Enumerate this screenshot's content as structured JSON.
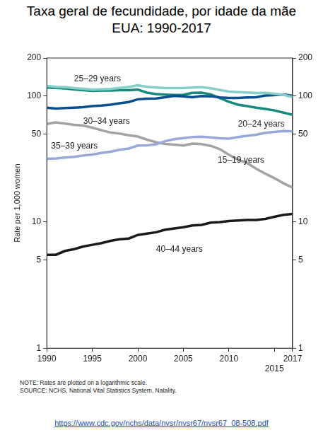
{
  "chart_data": {
    "type": "line",
    "title": "Taxa geral de fecundidade, por idade da mãe",
    "subtitle": "EUA: 1990-2017",
    "y_label": "Rate per 1,000 women",
    "notes": [
      "NOTE: Rates are plotted on a logarithmic scale.",
      "SOURCE: NCHS, National Vital Statistics System, Natality."
    ],
    "source_url": "https://www.cdc.gov/nchs/data/nvsr/nvsr67/nvsr67_08-508.pdf",
    "log": "y",
    "grid": false,
    "x": [
      1990,
      1991,
      1992,
      1993,
      1994,
      1995,
      1996,
      1997,
      1998,
      1999,
      2000,
      2001,
      2002,
      2003,
      2004,
      2005,
      2006,
      2007,
      2008,
      2009,
      2010,
      2011,
      2012,
      2013,
      2014,
      2015,
      2016,
      2017
    ],
    "xlim": [
      1990,
      2017
    ],
    "xticks": [
      1990,
      1995,
      2000,
      2005,
      2010,
      2015,
      2017
    ],
    "ylim": [
      1,
      200
    ],
    "yticks": [
      1,
      5,
      10,
      50,
      100,
      200
    ],
    "y2lim": [
      1,
      200
    ],
    "y2ticks": [
      1,
      5,
      10,
      50,
      100,
      200
    ],
    "series": [
      {
        "name": "25–29 years",
        "color": "#86cfc8",
        "values": [
          120.2,
          118.2,
          117.4,
          115.5,
          113.9,
          112.2,
          113.1,
          113.8,
          115.9,
          117.8,
          121.4,
          118.1,
          116.7,
          115.6,
          115.5,
          115.5,
          116.7,
          117.5,
          115.1,
          111.5,
          108.3,
          107.2,
          106.5,
          105.5,
          105.8,
          104.3,
          102.1,
          98.0
        ]
      },
      {
        "name": "30–34 years",
        "color": "#0b4f8f",
        "values": [
          80.8,
          79.5,
          80.2,
          80.8,
          81.5,
          83.2,
          83.9,
          85.3,
          87.4,
          89.6,
          94.1,
          95.3,
          95.5,
          97.7,
          100.1,
          99.3,
          97.7,
          99.9,
          99.4,
          97.5,
          96.5,
          96.5,
          97.3,
          97.7,
          100.8,
          101.5,
          102.7,
          100.3
        ]
      },
      {
        "name": "20–24 years",
        "color": "#168a7c",
        "values": [
          116.5,
          115.7,
          114.6,
          112.6,
          111.1,
          109.8,
          110.4,
          110.4,
          111.2,
          111.0,
          112.3,
          106.2,
          103.6,
          102.6,
          101.7,
          102.2,
          105.9,
          106.3,
          103.0,
          96.2,
          90.0,
          85.3,
          83.1,
          80.7,
          79.0,
          76.8,
          73.8,
          71.0
        ]
      },
      {
        "name": "35–39 years",
        "color": "#98a8d8",
        "values": [
          31.7,
          32.0,
          32.5,
          32.9,
          33.7,
          34.3,
          35.3,
          36.1,
          37.4,
          38.3,
          40.4,
          40.6,
          41.4,
          43.8,
          45.4,
          46.3,
          47.3,
          47.5,
          46.9,
          46.1,
          45.9,
          47.2,
          48.3,
          49.3,
          51.0,
          51.8,
          52.7,
          52.3
        ]
      },
      {
        "name": "15–19 years",
        "color": "#a3a3a3",
        "values": [
          59.9,
          61.8,
          60.3,
          59.0,
          58.2,
          56.0,
          53.5,
          51.3,
          50.3,
          48.8,
          47.7,
          45.0,
          43.0,
          41.6,
          41.1,
          40.5,
          41.9,
          41.5,
          40.2,
          37.9,
          34.2,
          31.3,
          29.4,
          26.5,
          24.2,
          22.3,
          20.3,
          18.8
        ]
      },
      {
        "name": "40–44 years",
        "color": "#1a1a1a",
        "values": [
          5.5,
          5.5,
          5.9,
          6.1,
          6.4,
          6.6,
          6.8,
          7.1,
          7.3,
          7.4,
          7.9,
          8.1,
          8.3,
          8.7,
          8.9,
          9.1,
          9.4,
          9.5,
          9.9,
          10.0,
          10.2,
          10.3,
          10.4,
          10.4,
          10.6,
          11.0,
          11.4,
          11.6
        ]
      }
    ]
  }
}
